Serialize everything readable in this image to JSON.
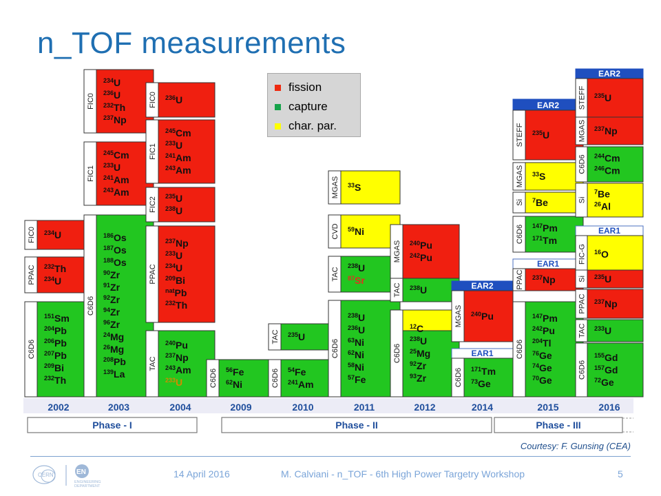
{
  "title": "n_TOF measurements",
  "legend": {
    "items": [
      {
        "label": "fission",
        "color": "#ee2a10"
      },
      {
        "label": "capture",
        "color": "#16a34a"
      },
      {
        "label": "char. par.",
        "color": "#ffff00"
      }
    ]
  },
  "colors": {
    "fission": "#f01f10",
    "capture": "#22c620",
    "charpar": "#ffff00",
    "year": "#1f4e9c",
    "ear": "#1f4fbf"
  },
  "years": [
    "2002",
    "2003",
    "2004",
    "2009",
    "2010",
    "2011",
    "2012",
    "2014",
    "2015",
    "2016"
  ],
  "phases": [
    "Phase - I",
    "Phase - II",
    "Phase - III"
  ],
  "columns": [
    {
      "blocks": [
        {
          "det": "FIC0",
          "type": "fission",
          "iso": [
            [
              "234",
              "U"
            ]
          ]
        },
        {
          "det": "PPAC",
          "type": "fission",
          "iso": [
            [
              "232",
              "Th"
            ],
            [
              "234",
              "U"
            ]
          ]
        },
        {
          "det": "C6D6",
          "type": "capture",
          "iso": [
            [
              "151",
              "Sm"
            ],
            [
              "204",
              "Pb"
            ],
            [
              "206",
              "Pb"
            ],
            [
              "207",
              "Pb"
            ],
            [
              "209",
              "Bi"
            ],
            [
              "232",
              "Th"
            ]
          ]
        }
      ]
    },
    {
      "blocks": [
        {
          "det": "FIC0",
          "type": "fission",
          "iso": [
            [
              "234",
              "U"
            ],
            [
              "236",
              "U"
            ],
            [
              "232",
              "Th"
            ],
            [
              "237",
              "Np"
            ]
          ]
        },
        {
          "det": "FIC1",
          "type": "fission",
          "iso": [
            [
              "245",
              "Cm"
            ],
            [
              "233",
              "U"
            ],
            [
              "241",
              "Am"
            ],
            [
              "243",
              "Am"
            ]
          ]
        },
        {
          "det": "C6D6",
          "type": "capture",
          "iso": [
            [
              "186",
              "Os"
            ],
            [
              "187",
              "Os"
            ],
            [
              "188",
              "Os"
            ],
            [
              "90",
              "Zr"
            ],
            [
              "91",
              "Zr"
            ],
            [
              "92",
              "Zr"
            ],
            [
              "94",
              "Zr"
            ],
            [
              "96",
              "Zr"
            ],
            [
              "24",
              "Mg"
            ],
            [
              "26",
              "Mg"
            ],
            [
              "208",
              "Pb"
            ],
            [
              "139",
              "La"
            ]
          ]
        }
      ]
    },
    {
      "blocks": [
        {
          "det": "FIC0",
          "type": "fission",
          "iso": [
            [
              "236",
              "U"
            ]
          ]
        },
        {
          "det": "FIC1",
          "type": "fission",
          "iso": [
            [
              "245",
              "Cm"
            ],
            [
              "233",
              "U"
            ],
            [
              "241",
              "Am"
            ],
            [
              "243",
              "Am"
            ]
          ]
        },
        {
          "det": "FIC2",
          "type": "fission",
          "iso": [
            [
              "235",
              "U"
            ],
            [
              "238",
              "U"
            ]
          ]
        },
        {
          "det": "PPAC",
          "type": "fission",
          "iso": [
            [
              "237",
              "Np"
            ],
            [
              "233",
              "U"
            ],
            [
              "234",
              "U"
            ],
            [
              "209",
              "Bi"
            ],
            [
              "nat",
              "Pb"
            ],
            [
              "232",
              "Th"
            ]
          ]
        },
        {
          "det": "TAC",
          "type": "capture",
          "iso": [
            [
              "240",
              "Pu"
            ],
            [
              "237",
              "Np"
            ],
            [
              "243",
              "Am"
            ],
            [
              "233",
              "U"
            ]
          ]
        }
      ]
    },
    {
      "blocks": [
        {
          "det": "C6D6",
          "type": "capture",
          "iso": [
            [
              "56",
              "Fe"
            ],
            [
              "62",
              "Ni"
            ]
          ]
        }
      ]
    },
    {
      "blocks": [
        {
          "det": "TAC",
          "type": "capture",
          "iso": [
            [
              "235",
              "U"
            ]
          ]
        },
        {
          "det": "C6D6",
          "type": "capture",
          "iso": [
            [
              "54",
              "Fe"
            ],
            [
              "241",
              "Am"
            ]
          ]
        }
      ]
    },
    {
      "blocks": [
        {
          "det": "MGAS",
          "type": "charpar",
          "iso": [
            [
              "33",
              "S"
            ]
          ]
        },
        {
          "det": "CVD",
          "type": "charpar",
          "iso": [
            [
              "59",
              "Ni"
            ]
          ]
        },
        {
          "det": "TAC",
          "type": "capture",
          "iso": [
            [
              "238",
              "U"
            ],
            [
              "87",
              "Sr"
            ]
          ]
        },
        {
          "det": "C6D6",
          "type": "capture",
          "iso": [
            [
              "238",
              "U"
            ],
            [
              "236",
              "U"
            ],
            [
              "63",
              "Ni"
            ],
            [
              "62",
              "Ni"
            ],
            [
              "58",
              "Ni"
            ],
            [
              "57",
              "Fe"
            ]
          ]
        }
      ]
    },
    {
      "blocks": [
        {
          "det": "MGAS",
          "type": "fission",
          "iso": [
            [
              "240",
              "Pu"
            ],
            [
              "242",
              "Pu"
            ]
          ]
        },
        {
          "det": "TAC",
          "type": "capture",
          "iso": [
            [
              "238",
              "U"
            ]
          ]
        },
        {
          "det": "C6D6",
          "type": "mixed",
          "iso": [
            [
              "12",
              "C"
            ],
            [
              "238",
              "U"
            ],
            [
              "25",
              "Mg"
            ],
            [
              "92",
              "Zr"
            ],
            [
              "93",
              "Zr"
            ]
          ]
        }
      ]
    },
    {
      "blocks": [
        {
          "det": "MGAS",
          "type": "fission",
          "iso": [
            [
              "240",
              "Pu"
            ]
          ],
          "ear": "EAR2"
        },
        {
          "det": "C6D6",
          "type": "capture",
          "iso": [
            [
              "171",
              "Tm"
            ],
            [
              "73",
              "Ge"
            ]
          ],
          "ear": "EAR1"
        }
      ]
    },
    {
      "blocks": [
        {
          "det": "STEFF",
          "type": "fission",
          "iso": [
            [
              "235",
              "U"
            ]
          ],
          "ear": "EAR2"
        },
        {
          "det": "MGAS",
          "type": "charpar",
          "iso": [
            [
              "33",
              "S"
            ]
          ]
        },
        {
          "det": "Si",
          "type": "charpar",
          "iso": [
            [
              "7",
              "Be"
            ]
          ]
        },
        {
          "det": "C6D6",
          "type": "capture",
          "iso": [
            [
              "147",
              "Pm"
            ],
            [
              "171",
              "Tm"
            ]
          ]
        },
        {
          "det": "PPAC",
          "type": "fission",
          "iso": [
            [
              "237",
              "Np"
            ]
          ],
          "ear": "EAR1"
        },
        {
          "det": "C6D6",
          "type": "capture",
          "iso": [
            [
              "147",
              "Pm"
            ],
            [
              "242",
              "Pu"
            ],
            [
              "204",
              "Tl"
            ],
            [
              "76",
              "Ge"
            ],
            [
              "74",
              "Ge"
            ],
            [
              "70",
              "Ge"
            ]
          ]
        }
      ]
    },
    {
      "blocks": [
        {
          "det": "STEFF",
          "type": "fission",
          "iso": [
            [
              "235",
              "U"
            ]
          ],
          "ear": "EAR2"
        },
        {
          "det": "MGAS",
          "type": "fission",
          "iso": [
            [
              "237",
              "Np"
            ]
          ]
        },
        {
          "det": "C6D6",
          "type": "capture",
          "iso": [
            [
              "244",
              "Cm"
            ],
            [
              "246",
              "Cm"
            ]
          ]
        },
        {
          "det": "Si",
          "type": "charpar",
          "iso": [
            [
              "7",
              "Be"
            ],
            [
              "26",
              "Al"
            ]
          ]
        },
        {
          "det": "FIC-G",
          "type": "charpar",
          "iso": [
            [
              "16",
              "O"
            ]
          ],
          "ear": "EAR1"
        },
        {
          "det": "Si",
          "type": "fission",
          "iso": [
            [
              "235",
              "U"
            ]
          ]
        },
        {
          "det": "PPAC",
          "type": "fission",
          "iso": [
            [
              "237",
              "Np"
            ]
          ]
        },
        {
          "det": "TAC",
          "type": "capture",
          "iso": [
            [
              "233",
              "U"
            ]
          ]
        },
        {
          "det": "C6D6",
          "type": "capture",
          "iso": [
            [
              "155",
              "Gd"
            ],
            [
              "157",
              "Gd"
            ],
            [
              "72",
              "Ge"
            ]
          ]
        }
      ]
    }
  ],
  "courtesy": "Courtesy: F. Gunsing (CEA)",
  "footer": {
    "date": "14 April 2016",
    "center": "M. Calviani - n_TOF - 6th High Power Targetry Workshop",
    "page": "5",
    "dept": [
      "ENGINEERING",
      "DEPARTMENT"
    ],
    "en": "EN",
    "cern": "CERN"
  }
}
